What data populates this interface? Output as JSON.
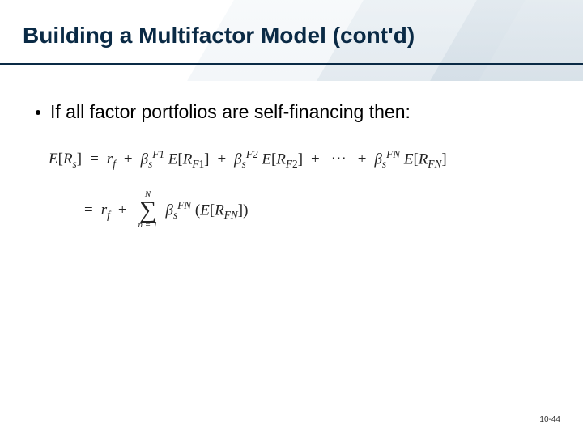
{
  "colors": {
    "title_text": "#0a2a45",
    "rule": "#0a2a45",
    "body_text": "#000000",
    "bullet": "#000000",
    "pagenum": "#333333",
    "formula": "#222222"
  },
  "typography": {
    "title_fontsize": 28,
    "body_fontsize": 23,
    "formula_fontsize": 19,
    "formula_family": "Times New Roman"
  },
  "title": "Building a Multifactor Model (cont'd)",
  "bullet": "If all factor portfolios are self-financing then:",
  "formula": {
    "line1": {
      "lhs": "E[R_s]",
      "rhs_prefix": "r_f",
      "terms": [
        {
          "beta_sup": "F1",
          "expect": "E[R_{F1}]"
        },
        {
          "beta_sup": "F2",
          "expect": "E[R_{F2}]"
        }
      ],
      "ellipsis": "⋯",
      "last_term": {
        "beta_sup": "FN",
        "expect": "E[R_{FN}]"
      }
    },
    "line2": {
      "prefix": "r_f",
      "sum_lower": "n = 1",
      "sum_upper": "N",
      "term": {
        "beta_sup": "FN",
        "expect": "E[R_{FN}]"
      }
    }
  },
  "page_number": "10-44"
}
